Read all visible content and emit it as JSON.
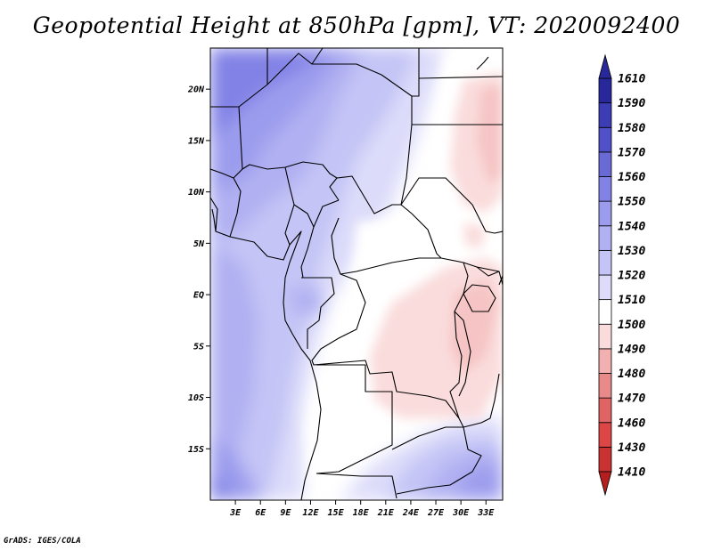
{
  "title": "Geopotential Height at 850hPa [gpm], VT: 2020092400",
  "credit": "GrADS: IGES/COLA",
  "map": {
    "lon_range": [
      0,
      35
    ],
    "lat_range": [
      -20,
      24
    ],
    "lon_ticks": [
      {
        "value": 3,
        "label": "3E"
      },
      {
        "value": 6,
        "label": "6E"
      },
      {
        "value": 9,
        "label": "9E"
      },
      {
        "value": 12,
        "label": "12E"
      },
      {
        "value": 15,
        "label": "15E"
      },
      {
        "value": 18,
        "label": "18E"
      },
      {
        "value": 21,
        "label": "21E"
      },
      {
        "value": 24,
        "label": "24E"
      },
      {
        "value": 27,
        "label": "27E"
      },
      {
        "value": 30,
        "label": "30E"
      },
      {
        "value": 33,
        "label": "33E"
      }
    ],
    "lat_ticks": [
      {
        "value": 20,
        "label": "20N"
      },
      {
        "value": 15,
        "label": "15N"
      },
      {
        "value": 10,
        "label": "10N"
      },
      {
        "value": 5,
        "label": "5N"
      },
      {
        "value": 0,
        "label": "EQ"
      },
      {
        "value": -5,
        "label": "5S"
      },
      {
        "value": -10,
        "label": "10S"
      },
      {
        "value": -15,
        "label": "15S"
      }
    ]
  },
  "colorbar": {
    "levels": [
      "1410",
      "1430",
      "1460",
      "1470",
      "1480",
      "1490",
      "1500",
      "1510",
      "1520",
      "1530",
      "1540",
      "1550",
      "1560",
      "1570",
      "1580",
      "1590",
      "1610"
    ],
    "colors": [
      "#b41e1e",
      "#c83232",
      "#dc4646",
      "#e16464",
      "#e98a8a",
      "#f2b0b0",
      "#fadcdc",
      "#ffffff",
      "#dcdcfa",
      "#c4c4f6",
      "#b0b0f2",
      "#9c9cee",
      "#8282e6",
      "#6a6ad6",
      "#5050c8",
      "#3c3cb4",
      "#28289a"
    ]
  }
}
